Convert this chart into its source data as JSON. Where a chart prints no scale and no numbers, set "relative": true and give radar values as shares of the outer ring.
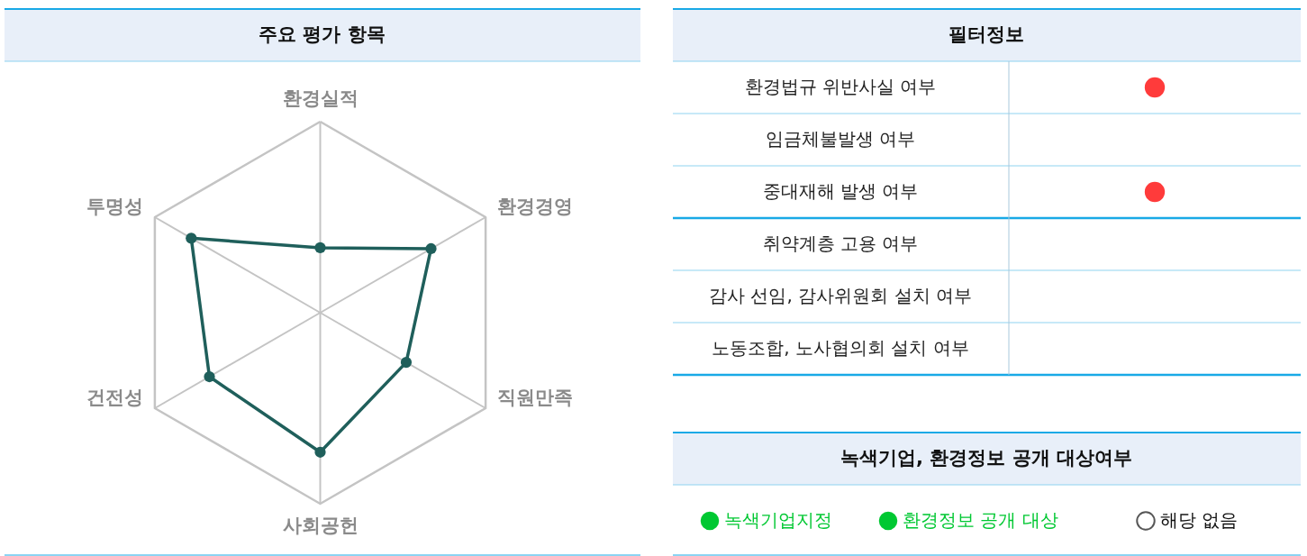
{
  "chart_data": [
    {
      "type": "radar",
      "title": "주요 평가 항목",
      "relative": true,
      "categories": [
        "환경실적",
        "환경경영",
        "직원만족",
        "사회공헌",
        "건전성",
        "투명성"
      ],
      "marker": "circle",
      "series": [
        {
          "color": "#1f5f5b",
          "values": [
            0.34,
            0.67,
            0.52,
            0.73,
            0.67,
            0.78
          ]
        }
      ]
    },
    {
      "type": "other",
      "title": "필터정보",
      "categories": [
        "환경법규 위반사실 여부",
        "임금체불발생 여부",
        "중대재해 발생 여부",
        "취약계층 고용 여부",
        "감사 선임, 감사위원회 설치 여부",
        "노동조합, 노사협의회 설치 여부"
      ],
      "colors": [
        "#ff3b3b",
        null,
        "#ff3b3b",
        null,
        null,
        null
      ]
    },
    {
      "type": "other",
      "title": "녹색기업, 환경정보 공개 대상여부",
      "series": [
        {
          "name": "녹색기업지정",
          "color": "#00c832"
        },
        {
          "name": "환경정보 공개 대상",
          "color": "#00c832"
        },
        {
          "name": "해당 없음",
          "color": null
        }
      ]
    }
  ]
}
